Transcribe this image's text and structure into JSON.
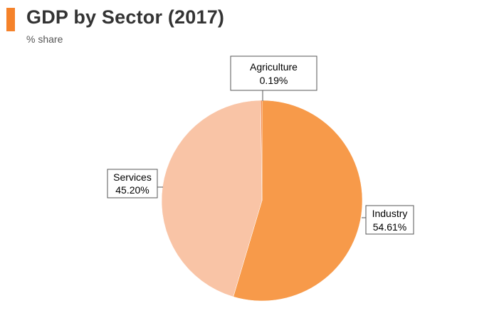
{
  "header": {
    "title": "GDP by Sector (2017)",
    "subtitle": "% share",
    "accent_color": "#f5822a"
  },
  "chart_data": {
    "type": "pie",
    "title": "GDP by Sector (2017)",
    "subtitle": "% share",
    "slices": [
      {
        "name": "Industry",
        "value": 54.61,
        "label": "54.61%",
        "color": "#f79a4a"
      },
      {
        "name": "Services",
        "value": 45.2,
        "label": "45.20%",
        "color": "#f9c4a6"
      },
      {
        "name": "Agriculture",
        "value": 0.19,
        "label": "0.19%",
        "color": "#f26b1d"
      }
    ]
  }
}
